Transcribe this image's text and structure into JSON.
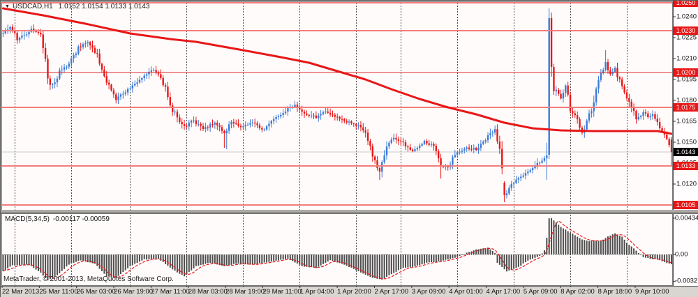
{
  "header": {
    "dropdown_icon": "▼",
    "symbol": "USDCAD,H1",
    "ohlc_text": "1.0152 1.0154 1.0133 1.0143"
  },
  "macd_header": {
    "label": "MACD(5,34,5)",
    "values": "-0.00117 -0.00059"
  },
  "footer": {
    "copyright": "MetaTrader, © 2001-2013, MetaQuotes Software Corp."
  },
  "colors": {
    "bull": "#3a7bd5",
    "bear": "#e81717",
    "ma": "#e81717",
    "level_thick": "#f47c7c",
    "level_thin": "#d92b2b",
    "bid_line": "#f47c7c",
    "close_line": "#c9c9c9",
    "histogram": "#4d4d4d",
    "signal": "#e81717",
    "label_red_bg": "#e81717",
    "label_black_bg": "#000000",
    "chart_bg": "#fffbfb",
    "separator": "#4d4d4d",
    "border": "#7a7a7a"
  },
  "chart_data": {
    "type": "candlestick",
    "symbol": "USDCAD",
    "timeframe": "H1",
    "title": "USDCAD,H1 1.0152 1.0154 1.0133 1.0143",
    "bars": 285,
    "last_bar_ohlc": {
      "open": 1.0152,
      "high": 1.0154,
      "low": 1.0133,
      "close": 1.0143
    },
    "price_axis_ticks": [
      1.024,
      1.0225,
      1.021,
      1.0195,
      1.018,
      1.0165,
      1.015,
      1.0135,
      1.012
    ],
    "levels": [
      {
        "price": 1.025,
        "weight": "thick"
      },
      {
        "price": 1.023,
        "weight": "thick"
      },
      {
        "price": 1.02,
        "weight": "thin"
      },
      {
        "price": 1.0175,
        "weight": "thick"
      },
      {
        "price": 1.0105,
        "weight": "thick"
      }
    ],
    "bid_price": 1.0133,
    "last_close": 1.0143,
    "close_path": [
      [
        0,
        1.0228
      ],
      [
        3,
        1.0233
      ],
      [
        6,
        1.0224
      ],
      [
        9,
        1.0227
      ],
      [
        12,
        1.0231
      ],
      [
        16,
        1.0228
      ],
      [
        18,
        1.0208
      ],
      [
        20,
        1.019
      ],
      [
        22,
        1.0193
      ],
      [
        24,
        1.0201
      ],
      [
        28,
        1.0206
      ],
      [
        32,
        1.0218
      ],
      [
        36,
        1.0222
      ],
      [
        40,
        1.0213
      ],
      [
        44,
        1.0194
      ],
      [
        48,
        1.0181
      ],
      [
        53,
        1.0188
      ],
      [
        59,
        1.0195
      ],
      [
        63,
        1.0202
      ],
      [
        66,
        1.0199
      ],
      [
        69,
        1.0188
      ],
      [
        72,
        1.0173
      ],
      [
        77,
        1.0161
      ],
      [
        81,
        1.0166
      ],
      [
        85,
        1.0159
      ],
      [
        90,
        1.0164
      ],
      [
        94,
        1.0157
      ],
      [
        97,
        1.0164
      ],
      [
        102,
        1.0161
      ],
      [
        106,
        1.0164
      ],
      [
        111,
        1.0159
      ],
      [
        115,
        1.0166
      ],
      [
        120,
        1.0173
      ],
      [
        124,
        1.0177
      ],
      [
        128,
        1.0171
      ],
      [
        133,
        1.0168
      ],
      [
        137,
        1.0172
      ],
      [
        142,
        1.0168
      ],
      [
        146,
        1.0165
      ],
      [
        151,
        1.0162
      ],
      [
        154,
        1.0156
      ],
      [
        157,
        1.0141
      ],
      [
        160,
        1.0129
      ],
      [
        163,
        1.0146
      ],
      [
        166,
        1.0153
      ],
      [
        170,
        1.0149
      ],
      [
        174,
        1.0144
      ],
      [
        179,
        1.0151
      ],
      [
        183,
        1.0147
      ],
      [
        186,
        1.0134
      ],
      [
        189,
        1.0131
      ],
      [
        192,
        1.0142
      ],
      [
        197,
        1.0146
      ],
      [
        201,
        1.0145
      ],
      [
        206,
        1.0154
      ],
      [
        209,
        1.0159
      ],
      [
        211,
        1.0146
      ],
      [
        212,
        1.0128
      ],
      [
        213,
        1.0111
      ],
      [
        215,
        1.0118
      ],
      [
        219,
        1.0124
      ],
      [
        222,
        1.0128
      ],
      [
        226,
        1.0133
      ],
      [
        230,
        1.0139
      ],
      [
        231,
        1.0141
      ],
      [
        232,
        1.0239
      ],
      [
        233,
        1.0204
      ],
      [
        234,
        1.0189
      ],
      [
        237,
        1.0181
      ],
      [
        239,
        1.019
      ],
      [
        241,
        1.0174
      ],
      [
        244,
        1.0166
      ],
      [
        246,
        1.0157
      ],
      [
        249,
        1.0169
      ],
      [
        251,
        1.018
      ],
      [
        253,
        1.0194
      ],
      [
        256,
        1.0207
      ],
      [
        258,
        1.0199
      ],
      [
        260,
        1.0203
      ],
      [
        263,
        1.0189
      ],
      [
        265,
        1.0181
      ],
      [
        268,
        1.0171
      ],
      [
        269,
        1.0166
      ],
      [
        272,
        1.0172
      ],
      [
        274,
        1.0168
      ],
      [
        276,
        1.017
      ],
      [
        278,
        1.0164
      ],
      [
        280,
        1.0157
      ],
      [
        282,
        1.0151
      ],
      [
        284,
        1.0143
      ]
    ],
    "special_bars": [
      {
        "i": 94,
        "l": 1.0146
      },
      {
        "i": 95,
        "l": 1.0145
      },
      {
        "i": 160,
        "l": 1.0123
      },
      {
        "i": 186,
        "l": 1.0124
      },
      {
        "i": 213,
        "o": 1.0121,
        "h": 1.0122,
        "l": 1.0107,
        "c": 1.0112
      },
      {
        "i": 232,
        "o": 1.0141,
        "h": 1.0246,
        "l": 1.0138,
        "c": 1.0239
      },
      {
        "i": 233,
        "o": 1.0239,
        "h": 1.0243,
        "l": 1.0197,
        "c": 1.0204
      },
      {
        "i": 256,
        "h": 1.0216
      },
      {
        "i": 284,
        "o": 1.0152,
        "h": 1.0154,
        "l": 1.0133,
        "c": 1.0143
      }
    ],
    "ma_line": {
      "points": [
        [
          0,
          1.0246
        ],
        [
          17,
          1.0241
        ],
        [
          35,
          1.0235
        ],
        [
          54,
          1.0228
        ],
        [
          71,
          1.0224
        ],
        [
          82,
          1.0222
        ],
        [
          102,
          1.0216
        ],
        [
          118,
          1.0211
        ],
        [
          130,
          1.0207
        ],
        [
          142,
          1.0201
        ],
        [
          154,
          1.0195
        ],
        [
          165,
          1.0188
        ],
        [
          177,
          1.0181
        ],
        [
          189,
          1.0175
        ],
        [
          201,
          1.017
        ],
        [
          213,
          1.0164
        ],
        [
          225,
          1.016
        ],
        [
          237,
          1.01585
        ],
        [
          251,
          1.0158
        ],
        [
          266,
          1.0158
        ],
        [
          278,
          1.0158
        ],
        [
          285,
          1.0156
        ]
      ]
    },
    "day_separator_bars": [
      5,
      29,
      54,
      78,
      102,
      126,
      150,
      169,
      193,
      217,
      241,
      265
    ],
    "time_labels": [
      "22 Mar 2013",
      "25 Mar 11:00",
      "26 Mar 03:00",
      "26 Mar 19:00",
      "27 Mar 11:00",
      "28 Mar 03:00",
      "28 Mar 19:00",
      "29 Mar 11:00",
      "1 Apr 04:00",
      "1 Apr 20:00",
      "2 Apr 17:00",
      "3 Apr 09:00",
      "4 Apr 01:00",
      "4 Apr 17:00",
      "5 Apr 09:00",
      "8 Apr 02:00",
      "8 Apr 18:00",
      "9 Apr 10:00"
    ],
    "macd": {
      "name": "MACD(5,34,5)",
      "main_value": -0.00117,
      "signal_value": -0.00059,
      "axis_ticks": [
        {
          "label": "0.00434",
          "value": 0.00434
        },
        {
          "label": "0.00",
          "value": 0
        },
        {
          "label": "-0.0032",
          "value": -0.0032
        }
      ],
      "anchors": [
        [
          0,
          -0.002
        ],
        [
          4,
          -0.0013
        ],
        [
          11,
          -0.0012
        ],
        [
          16,
          -0.0022
        ],
        [
          19,
          -0.0031
        ],
        [
          23,
          -0.0025
        ],
        [
          28,
          -0.0012
        ],
        [
          33,
          -0.0007
        ],
        [
          39,
          -0.0011
        ],
        [
          44,
          -0.0026
        ],
        [
          48,
          -0.0028
        ],
        [
          54,
          -0.0014
        ],
        [
          60,
          -0.0006
        ],
        [
          66,
          -0.0005
        ],
        [
          72,
          -0.0018
        ],
        [
          77,
          -0.0026
        ],
        [
          82,
          -0.0014
        ],
        [
          88,
          -0.001
        ],
        [
          94,
          -0.0014
        ],
        [
          99,
          -0.0011
        ],
        [
          106,
          -0.0012
        ],
        [
          115,
          -0.0008
        ],
        [
          121,
          -0.0005
        ],
        [
          127,
          -0.0014
        ],
        [
          133,
          -0.0016
        ],
        [
          139,
          -0.0007
        ],
        [
          145,
          -0.0012
        ],
        [
          151,
          -0.002
        ],
        [
          157,
          -0.0028
        ],
        [
          161,
          -0.003
        ],
        [
          166,
          -0.0022
        ],
        [
          170,
          -0.0016
        ],
        [
          174,
          -0.0015
        ],
        [
          180,
          -0.001
        ],
        [
          186,
          -0.0008
        ],
        [
          192,
          -0.0004
        ],
        [
          197,
          0.0002
        ],
        [
          201,
          0.0006
        ],
        [
          206,
          0.0008
        ],
        [
          209,
          0.0002
        ],
        [
          210,
          -0.001
        ],
        [
          214,
          -0.002
        ],
        [
          219,
          -0.0015
        ],
        [
          223,
          -0.0007
        ],
        [
          228,
          -0.0002
        ],
        [
          230,
          0.0005
        ],
        [
          231,
          0.002
        ],
        [
          232,
          0.0043
        ],
        [
          233,
          0.00434
        ],
        [
          235,
          0.0038
        ],
        [
          237,
          0.0033
        ],
        [
          240,
          0.0028
        ],
        [
          243,
          0.0023
        ],
        [
          246,
          0.0018
        ],
        [
          249,
          0.0016
        ],
        [
          251,
          0.0017
        ],
        [
          254,
          0.0016
        ],
        [
          256,
          0.002
        ],
        [
          259,
          0.0024
        ],
        [
          260,
          0.0025
        ],
        [
          263,
          0.0021
        ],
        [
          265,
          0.0014
        ],
        [
          268,
          0.0007
        ],
        [
          270,
          0.0002
        ],
        [
          272,
          -0.0003
        ],
        [
          275,
          -0.0005
        ],
        [
          278,
          -0.0006
        ],
        [
          281,
          -0.0009
        ],
        [
          283,
          -0.0011
        ],
        [
          284,
          -0.00117
        ]
      ]
    }
  }
}
